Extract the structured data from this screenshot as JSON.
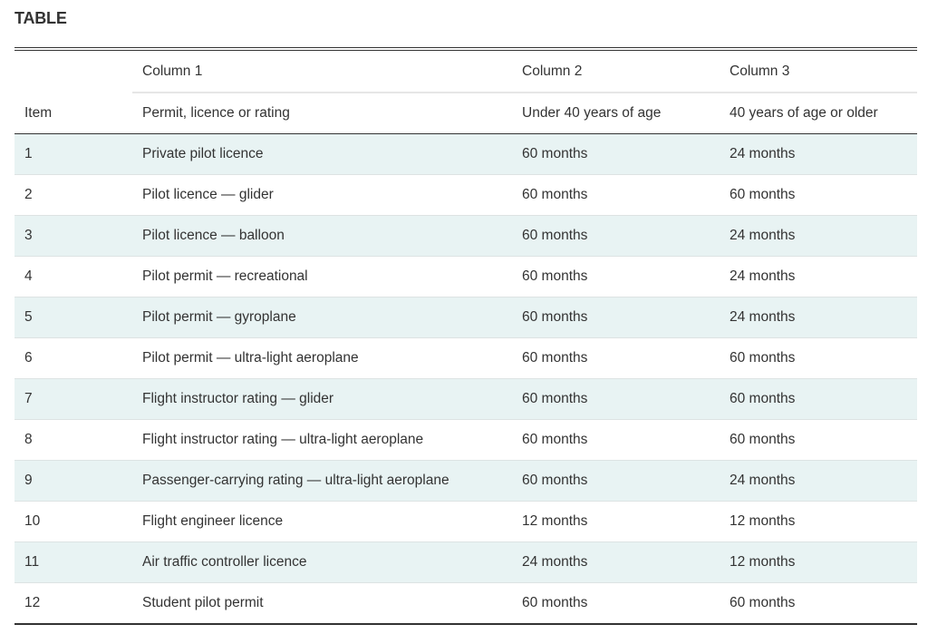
{
  "title": "TABLE",
  "column_labels": [
    "Column 1",
    "Column 2",
    "Column 3"
  ],
  "headers": {
    "item": "Item",
    "col1": "Permit, licence or rating",
    "col2": "Under 40 years of age",
    "col3": "40 years of age or older"
  },
  "rows": [
    {
      "item": "1",
      "name": "Private pilot licence",
      "under40": "60 months",
      "over40": "24 months"
    },
    {
      "item": "2",
      "name": "Pilot licence — glider",
      "under40": "60 months",
      "over40": "60 months"
    },
    {
      "item": "3",
      "name": "Pilot licence — balloon",
      "under40": "60 months",
      "over40": "24 months"
    },
    {
      "item": "4",
      "name": "Pilot permit — recreational",
      "under40": "60 months",
      "over40": "24 months"
    },
    {
      "item": "5",
      "name": "Pilot permit — gyroplane",
      "under40": "60 months",
      "over40": "24 months"
    },
    {
      "item": "6",
      "name": "Pilot permit — ultra-light aeroplane",
      "under40": "60 months",
      "over40": "60 months"
    },
    {
      "item": "7",
      "name": "Flight instructor rating — glider",
      "under40": "60 months",
      "over40": "60 months"
    },
    {
      "item": "8",
      "name": "Flight instructor rating — ultra-light aeroplane",
      "under40": "60 months",
      "over40": "60 months"
    },
    {
      "item": "9",
      "name": "Passenger-carrying rating — ultra-light aeroplane",
      "under40": "60 months",
      "over40": "24 months"
    },
    {
      "item": "10",
      "name": "Flight engineer licence",
      "under40": "12 months",
      "over40": "12 months"
    },
    {
      "item": "11",
      "name": "Air traffic controller licence",
      "under40": "24 months",
      "over40": "12 months"
    },
    {
      "item": "12",
      "name": "Student pilot permit",
      "under40": "60 months",
      "over40": "60 months"
    }
  ]
}
